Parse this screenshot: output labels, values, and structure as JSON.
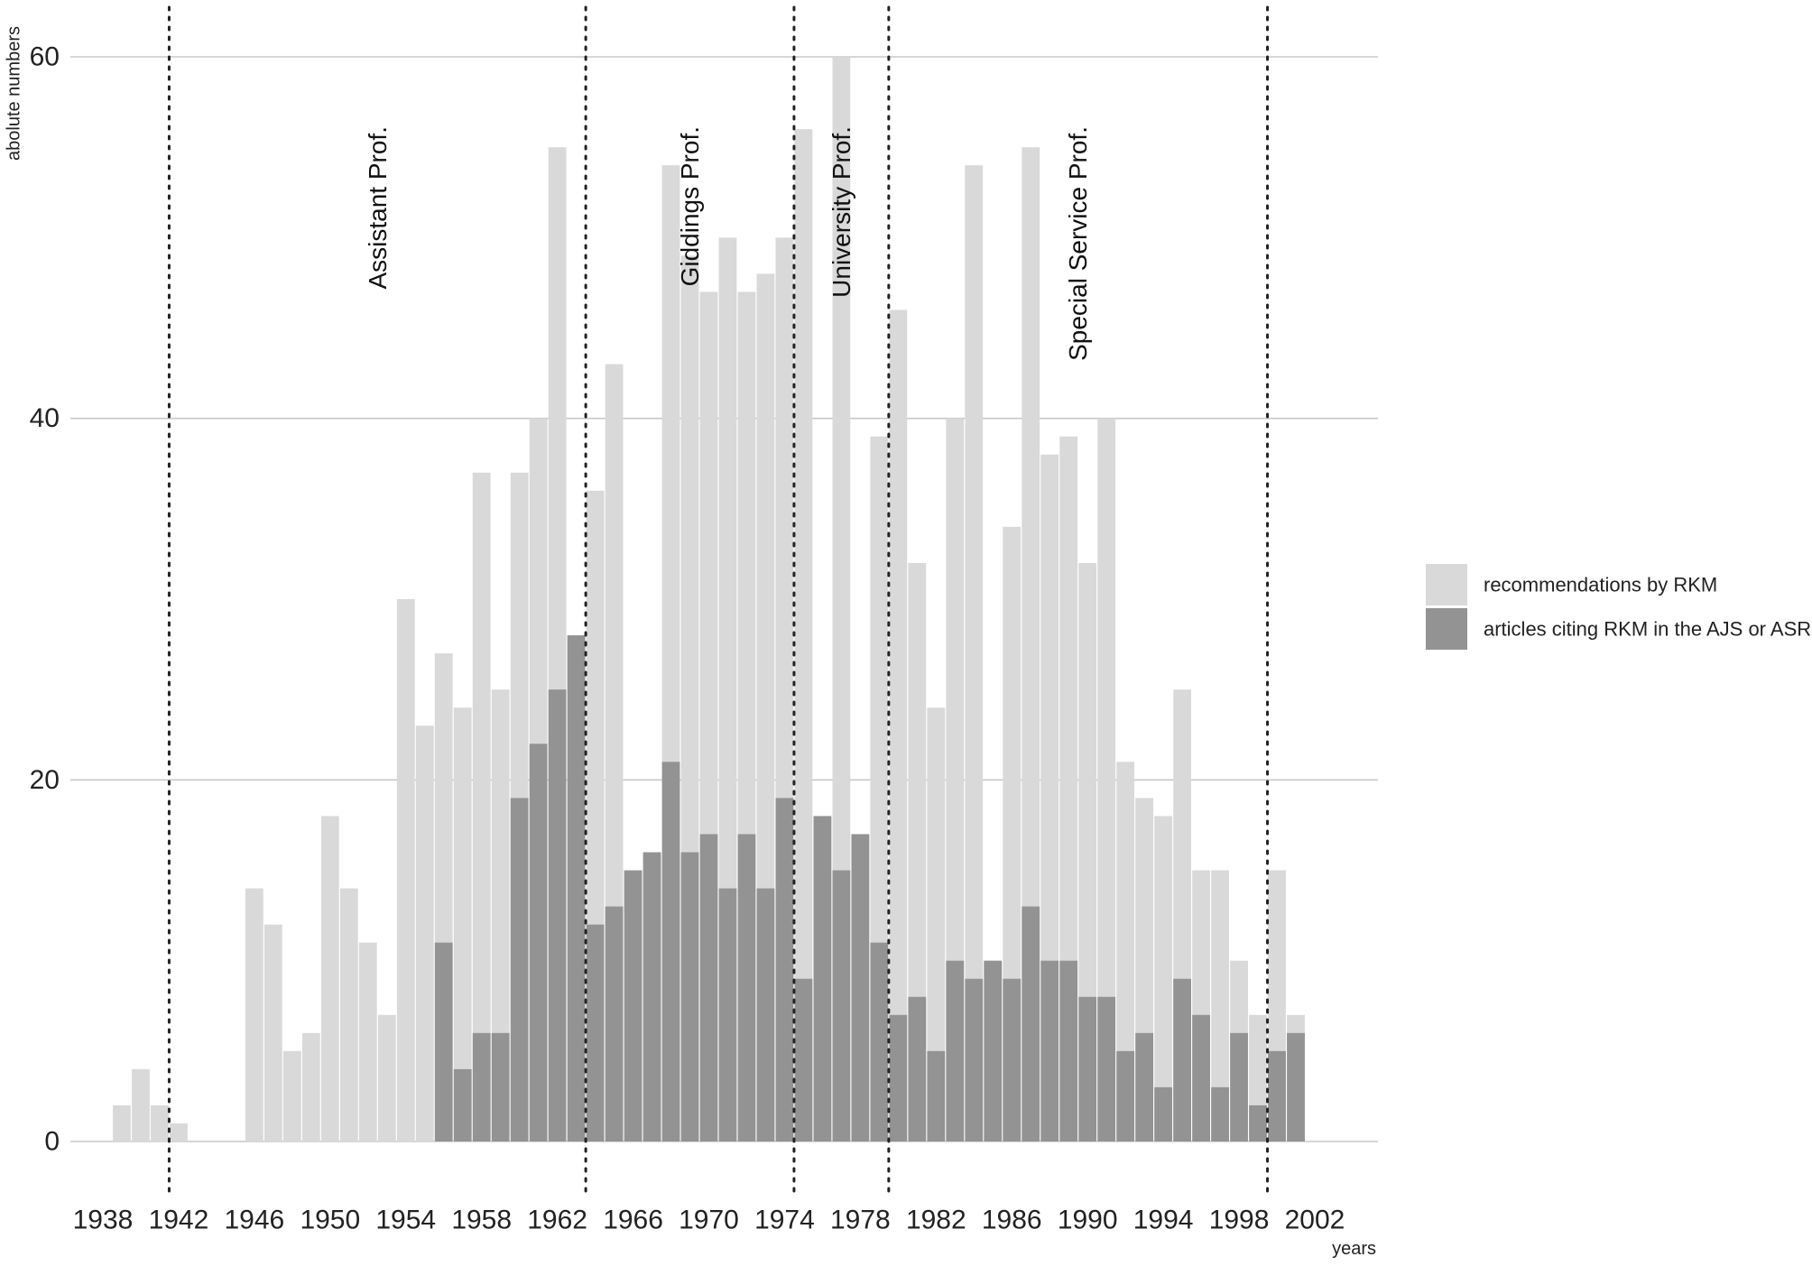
{
  "chart_data": {
    "type": "bar",
    "stacking": "overlay",
    "ylabel": "abolute numbers",
    "xlabel": "years",
    "ylim": [
      0,
      60
    ],
    "yticks": [
      0,
      20,
      40,
      60
    ],
    "xticks": [
      1938,
      1942,
      1946,
      1950,
      1954,
      1958,
      1962,
      1966,
      1970,
      1974,
      1978,
      1982,
      1986,
      1990,
      1994,
      1998,
      2002
    ],
    "grid": "horizontal",
    "legend_position": "right",
    "x": [
      1939,
      1940,
      1941,
      1942,
      1943,
      1944,
      1945,
      1946,
      1947,
      1948,
      1949,
      1950,
      1951,
      1952,
      1953,
      1954,
      1955,
      1956,
      1957,
      1958,
      1959,
      1960,
      1961,
      1962,
      1963,
      1964,
      1965,
      1966,
      1967,
      1968,
      1969,
      1970,
      1971,
      1972,
      1973,
      1974,
      1975,
      1976,
      1977,
      1978,
      1979,
      1980,
      1981,
      1982,
      1983,
      1984,
      1985,
      1986,
      1987,
      1988,
      1989,
      1990,
      1991,
      1992,
      1993,
      1994,
      1995,
      1996,
      1997,
      1998,
      1999,
      2000,
      2001
    ],
    "series": [
      {
        "name": "recommendations by RKM",
        "color": "#d9d9d9",
        "values": [
          2,
          4,
          2,
          1,
          0,
          0,
          0,
          14,
          12,
          5,
          6,
          18,
          14,
          11,
          7,
          30,
          23,
          27,
          24,
          37,
          25,
          37,
          40,
          55,
          28,
          36,
          43,
          15,
          16,
          54,
          49,
          47,
          50,
          47,
          48,
          50,
          56,
          18,
          60,
          17,
          39,
          46,
          32,
          24,
          40,
          54,
          10,
          34,
          55,
          38,
          39,
          32,
          40,
          21,
          19,
          18,
          25,
          15,
          15,
          10,
          7,
          15,
          7
        ]
      },
      {
        "name": "articles citing RKM in the AJS or ASR",
        "color": "#939393",
        "values": [
          0,
          0,
          0,
          0,
          0,
          0,
          0,
          0,
          0,
          0,
          0,
          0,
          0,
          0,
          0,
          0,
          0,
          11,
          4,
          6,
          6,
          19,
          22,
          25,
          28,
          12,
          13,
          15,
          16,
          21,
          16,
          17,
          14,
          17,
          14,
          19,
          9,
          18,
          15,
          17,
          11,
          7,
          8,
          5,
          10,
          9,
          10,
          9,
          13,
          10,
          10,
          8,
          8,
          5,
          6,
          3,
          9,
          7,
          3,
          6,
          2,
          5,
          6
        ]
      }
    ],
    "periods": [
      {
        "label": "Assistant Prof.",
        "start": 1941
      },
      {
        "label": "Giddings Prof.",
        "start": 1963
      },
      {
        "label": "University Prof.",
        "start": 1974
      },
      {
        "label": "Special Service Prof.",
        "start": 1979
      },
      {
        "label": "",
        "start": 1999
      }
    ]
  }
}
